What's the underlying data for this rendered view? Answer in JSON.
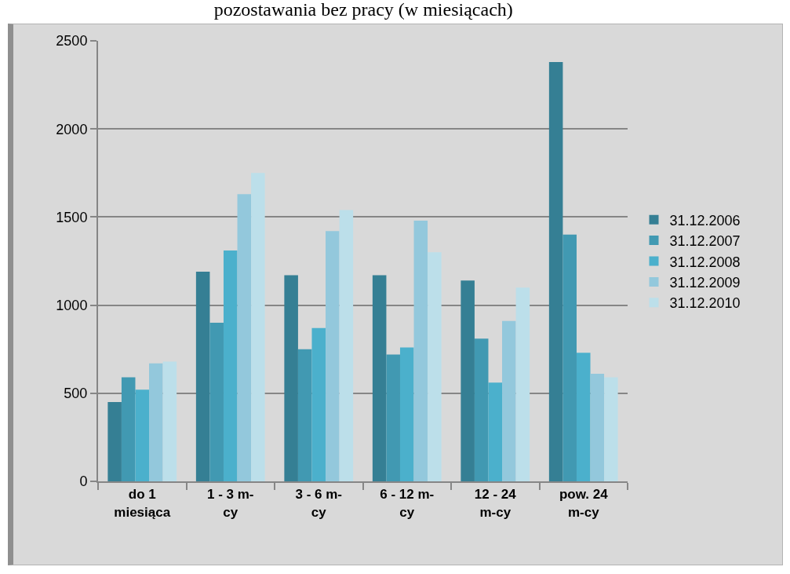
{
  "chart_data": {
    "type": "bar",
    "title": "pozostawania bez pracy (w miesiącach)",
    "categories": [
      "do 1 miesiąca",
      "1 - 3 m-cy",
      "3 - 6 m-cy",
      "6 - 12 m-cy",
      "12 - 24 m-cy",
      "pow. 24 m-cy"
    ],
    "series": [
      {
        "name": "31.12.2006",
        "color": "#357f94",
        "values": [
          450,
          1190,
          1170,
          1170,
          1140,
          2380
        ]
      },
      {
        "name": "31.12.2007",
        "color": "#4199b2",
        "values": [
          590,
          900,
          750,
          720,
          810,
          1400
        ]
      },
      {
        "name": "31.12.2008",
        "color": "#4bb0cc",
        "values": [
          520,
          1310,
          870,
          760,
          560,
          730
        ]
      },
      {
        "name": "31.12.2009",
        "color": "#93c8dc",
        "values": [
          670,
          1630,
          1420,
          1480,
          910,
          610
        ]
      },
      {
        "name": "31.12.2010",
        "color": "#bcdfea",
        "values": [
          680,
          1750,
          1540,
          1300,
          1100,
          590
        ]
      }
    ],
    "ylim": [
      0,
      2500
    ],
    "yticks": [
      0,
      500,
      1000,
      1500,
      2000,
      2500
    ],
    "grid": "y",
    "legend": "right"
  }
}
